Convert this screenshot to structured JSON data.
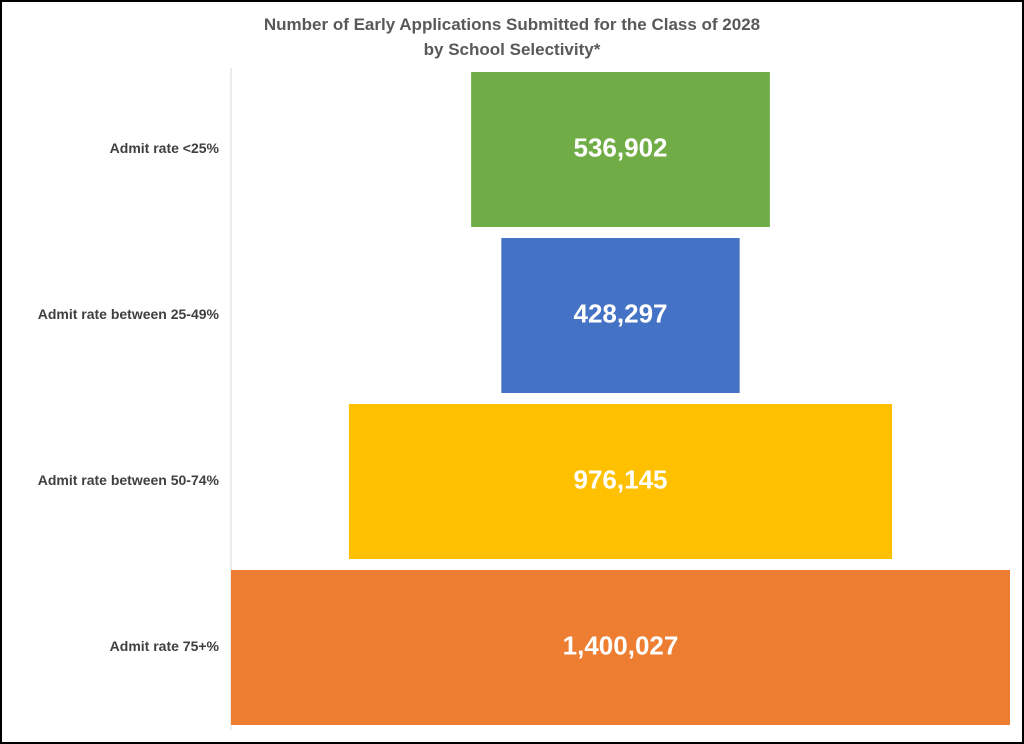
{
  "chart_data": {
    "type": "bar",
    "orientation": "horizontal-funnel",
    "title": "Number of Early Applications Submitted for the Class of 2028",
    "subtitle": "by School Selectivity*",
    "categories": [
      "Admit rate <25%",
      "Admit rate between 25-49%",
      "Admit rate between 50-74%",
      "Admit rate 75+%"
    ],
    "values": [
      536902,
      428297,
      976145,
      1400027
    ],
    "value_labels": [
      "536,902",
      "428,297",
      "976,145",
      "1,400,027"
    ],
    "colors": [
      "#70AD47",
      "#4472C4",
      "#FFC000",
      "#ED7D31"
    ],
    "grid": false,
    "legend": "none"
  }
}
